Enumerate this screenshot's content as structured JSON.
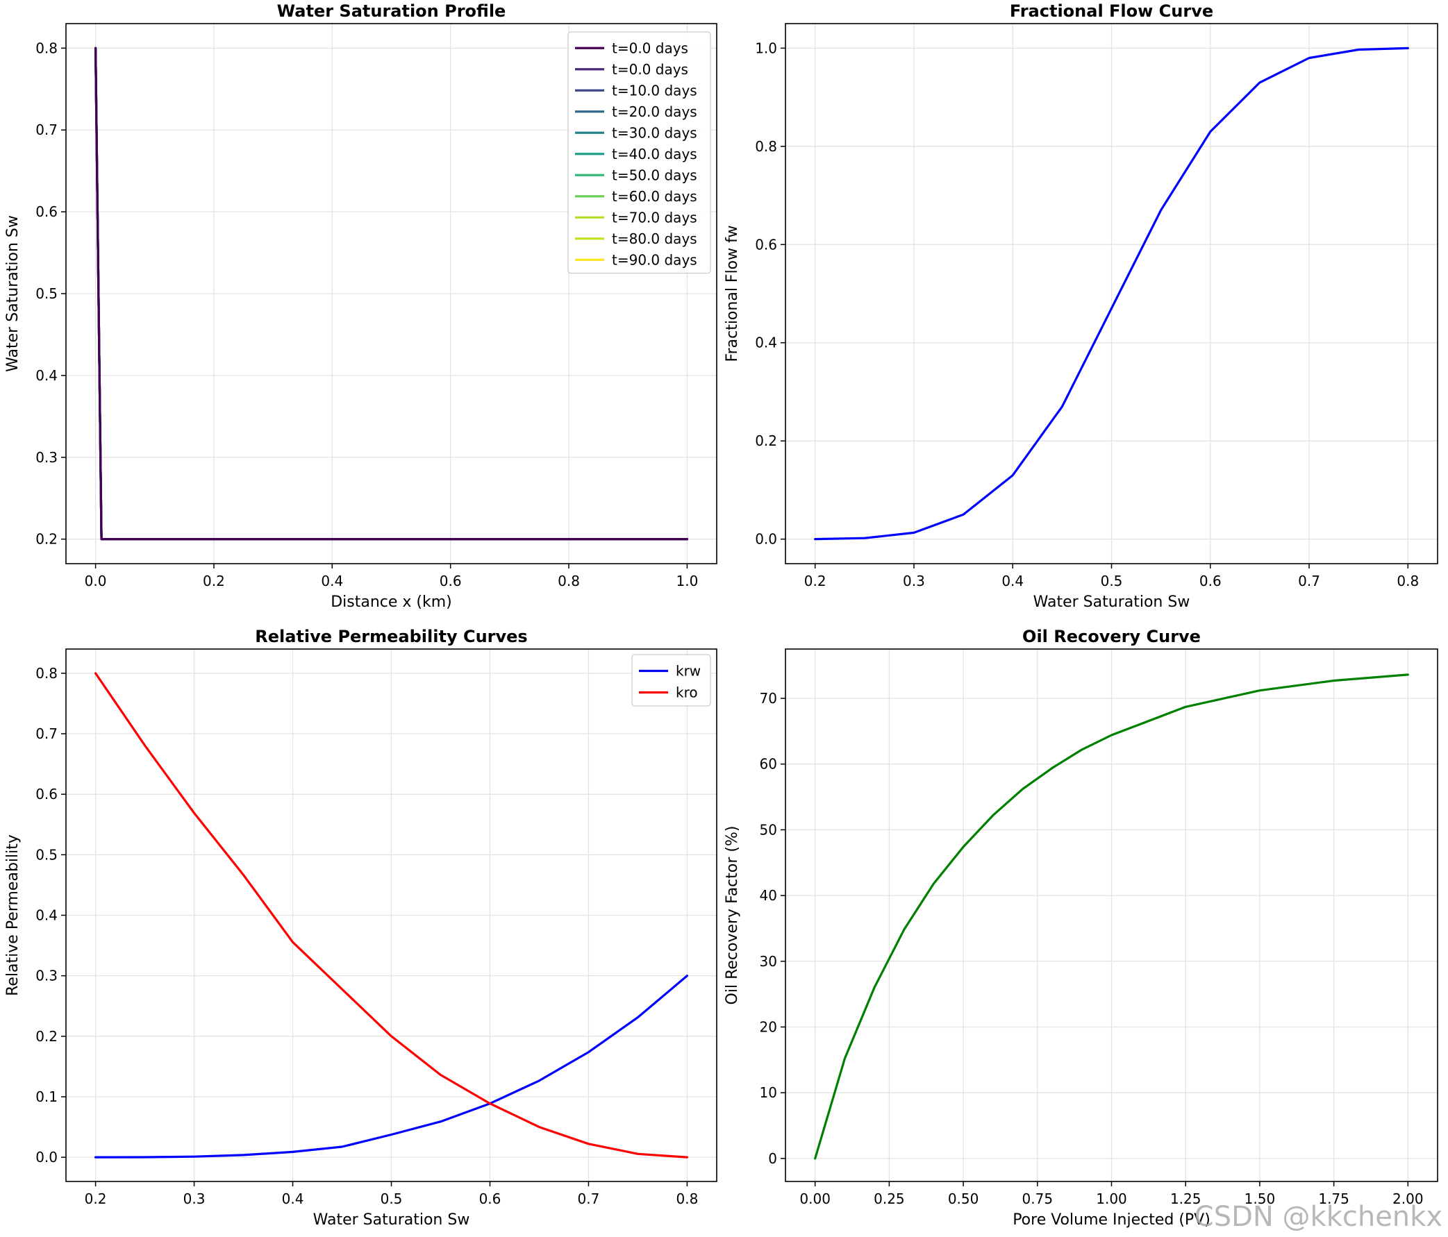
{
  "watermark": "CSDN @kkchenkx",
  "chart_data": [
    {
      "type": "line",
      "title": "Water Saturation Profile",
      "xlabel": "Distance x (km)",
      "ylabel": "Water Saturation Sw",
      "xlim": [
        -0.05,
        1.05
      ],
      "ylim": [
        0.17,
        0.83
      ],
      "xticks": [
        0.0,
        0.2,
        0.4,
        0.6,
        0.8,
        1.0
      ],
      "xtick_labels": [
        "0.0",
        "0.2",
        "0.4",
        "0.6",
        "0.8",
        "1.0"
      ],
      "yticks": [
        0.2,
        0.3,
        0.4,
        0.5,
        0.6,
        0.7,
        0.8
      ],
      "ytick_labels": [
        "0.2",
        "0.3",
        "0.4",
        "0.5",
        "0.6",
        "0.7",
        "0.8"
      ],
      "grid": true,
      "legend": "top-right",
      "series": [
        {
          "name": "t=0.0 days",
          "color": "#440154",
          "x": [
            0.0,
            0.0,
            0.01,
            1.0
          ],
          "y": [
            0.8,
            0.8,
            0.2,
            0.2
          ]
        },
        {
          "name": "t=0.0 days",
          "color": "#482878",
          "x": [
            0.0,
            0.0,
            0.01,
            1.0
          ],
          "y": [
            0.8,
            0.8,
            0.2,
            0.2
          ]
        },
        {
          "name": "t=10.0 days",
          "color": "#3e4989",
          "x": [
            0.0,
            0.01,
            1.0
          ],
          "y": [
            0.8,
            0.2,
            0.2
          ]
        },
        {
          "name": "t=20.0 days",
          "color": "#31688e",
          "x": [
            0.0,
            0.01,
            1.0
          ],
          "y": [
            0.8,
            0.2,
            0.2
          ]
        },
        {
          "name": "t=30.0 days",
          "color": "#26828e",
          "x": [
            0.0,
            0.01,
            1.0
          ],
          "y": [
            0.8,
            0.2,
            0.2
          ]
        },
        {
          "name": "t=40.0 days",
          "color": "#1f9e89",
          "x": [
            0.0,
            0.01,
            1.0
          ],
          "y": [
            0.8,
            0.2,
            0.2
          ]
        },
        {
          "name": "t=50.0 days",
          "color": "#35b779",
          "x": [
            0.0,
            0.01,
            1.0
          ],
          "y": [
            0.8,
            0.2,
            0.2
          ]
        },
        {
          "name": "t=60.0 days",
          "color": "#6ece58",
          "x": [
            0.0,
            0.01,
            1.0
          ],
          "y": [
            0.8,
            0.2,
            0.2
          ]
        },
        {
          "name": "t=70.0 days",
          "color": "#b5de2b",
          "x": [
            0.0,
            0.01,
            1.0
          ],
          "y": [
            0.8,
            0.2,
            0.2
          ]
        },
        {
          "name": "t=80.0 days",
          "color": "#c8e020",
          "x": [
            0.0,
            0.01,
            1.0
          ],
          "y": [
            0.8,
            0.2,
            0.2
          ]
        },
        {
          "name": "t=90.0 days",
          "color": "#fde725",
          "x": [
            0.0,
            0.01,
            1.0
          ],
          "y": [
            0.8,
            0.2,
            0.2
          ]
        }
      ],
      "draw_order": [
        10,
        9,
        8,
        7,
        6,
        5,
        4,
        3,
        2,
        1,
        0
      ]
    },
    {
      "type": "line",
      "title": "Fractional Flow Curve",
      "xlabel": "Water Saturation Sw",
      "ylabel": "Fractional Flow fw",
      "xlim": [
        0.17,
        0.83
      ],
      "ylim": [
        -0.05,
        1.05
      ],
      "xticks": [
        0.2,
        0.3,
        0.4,
        0.5,
        0.6,
        0.7,
        0.8
      ],
      "xtick_labels": [
        "0.2",
        "0.3",
        "0.4",
        "0.5",
        "0.6",
        "0.7",
        "0.8"
      ],
      "yticks": [
        0.0,
        0.2,
        0.4,
        0.6,
        0.8,
        1.0
      ],
      "ytick_labels": [
        "0.0",
        "0.2",
        "0.4",
        "0.6",
        "0.8",
        "1.0"
      ],
      "grid": true,
      "series": [
        {
          "name": "fw",
          "color": "#0000ff",
          "x": [
            0.2,
            0.25,
            0.3,
            0.35,
            0.4,
            0.45,
            0.5,
            0.55,
            0.6,
            0.65,
            0.7,
            0.75,
            0.8
          ],
          "y": [
            0.0,
            0.002,
            0.013,
            0.05,
            0.13,
            0.27,
            0.47,
            0.67,
            0.83,
            0.93,
            0.98,
            0.997,
            1.0
          ]
        }
      ]
    },
    {
      "type": "line",
      "title": "Relative Permeability Curves",
      "xlabel": "Water Saturation Sw",
      "ylabel": "Relative Permeability",
      "xlim": [
        0.17,
        0.83
      ],
      "ylim": [
        -0.04,
        0.84
      ],
      "xticks": [
        0.2,
        0.3,
        0.4,
        0.5,
        0.6,
        0.7,
        0.8
      ],
      "xtick_labels": [
        "0.2",
        "0.3",
        "0.4",
        "0.5",
        "0.6",
        "0.7",
        "0.8"
      ],
      "yticks": [
        0.0,
        0.1,
        0.2,
        0.3,
        0.4,
        0.5,
        0.6,
        0.7,
        0.8
      ],
      "ytick_labels": [
        "0.0",
        "0.1",
        "0.2",
        "0.3",
        "0.4",
        "0.5",
        "0.6",
        "0.7",
        "0.8"
      ],
      "grid": true,
      "legend": "top-right",
      "series": [
        {
          "name": "krw",
          "color": "#0000ff",
          "x": [
            0.2,
            0.25,
            0.3,
            0.35,
            0.4,
            0.45,
            0.5,
            0.55,
            0.6,
            0.65,
            0.7,
            0.75,
            0.8
          ],
          "y": [
            0.0,
            0.0001,
            0.0011,
            0.0037,
            0.0089,
            0.0174,
            0.0375,
            0.059,
            0.0889,
            0.1266,
            0.1737,
            0.2312,
            0.3
          ]
        },
        {
          "name": "kro",
          "color": "#ff0000",
          "x": [
            0.2,
            0.25,
            0.3,
            0.35,
            0.4,
            0.45,
            0.5,
            0.55,
            0.6,
            0.65,
            0.7,
            0.75,
            0.8
          ],
          "y": [
            0.8,
            0.6806,
            0.5689,
            0.4667,
            0.3556,
            0.2778,
            0.2,
            0.1361,
            0.0889,
            0.05,
            0.0222,
            0.0056,
            0.0
          ]
        }
      ]
    },
    {
      "type": "line",
      "title": "Oil Recovery Curve",
      "xlabel": "Pore Volume Injected (PV)",
      "ylabel": "Oil Recovery Factor (%)",
      "xlim": [
        -0.1,
        2.1
      ],
      "ylim": [
        -3.5,
        77.5
      ],
      "xticks": [
        0.0,
        0.25,
        0.5,
        0.75,
        1.0,
        1.25,
        1.5,
        1.75,
        2.0
      ],
      "xtick_labels": [
        "0.00",
        "0.25",
        "0.50",
        "0.75",
        "1.00",
        "1.25",
        "1.50",
        "1.75",
        "2.00"
      ],
      "yticks": [
        0,
        10,
        20,
        30,
        40,
        50,
        60,
        70
      ],
      "ytick_labels": [
        "0",
        "10",
        "20",
        "30",
        "40",
        "50",
        "60",
        "70"
      ],
      "grid": true,
      "series": [
        {
          "name": "recovery",
          "color": "#008000",
          "x": [
            0.0,
            0.1,
            0.2,
            0.3,
            0.4,
            0.5,
            0.6,
            0.7,
            0.8,
            0.9,
            1.0,
            1.25,
            1.5,
            1.75,
            2.0
          ],
          "y": [
            0.0,
            15.2,
            26.0,
            34.8,
            41.8,
            47.4,
            52.2,
            56.2,
            59.4,
            62.2,
            64.4,
            68.7,
            71.2,
            72.7,
            73.6
          ]
        }
      ]
    }
  ]
}
